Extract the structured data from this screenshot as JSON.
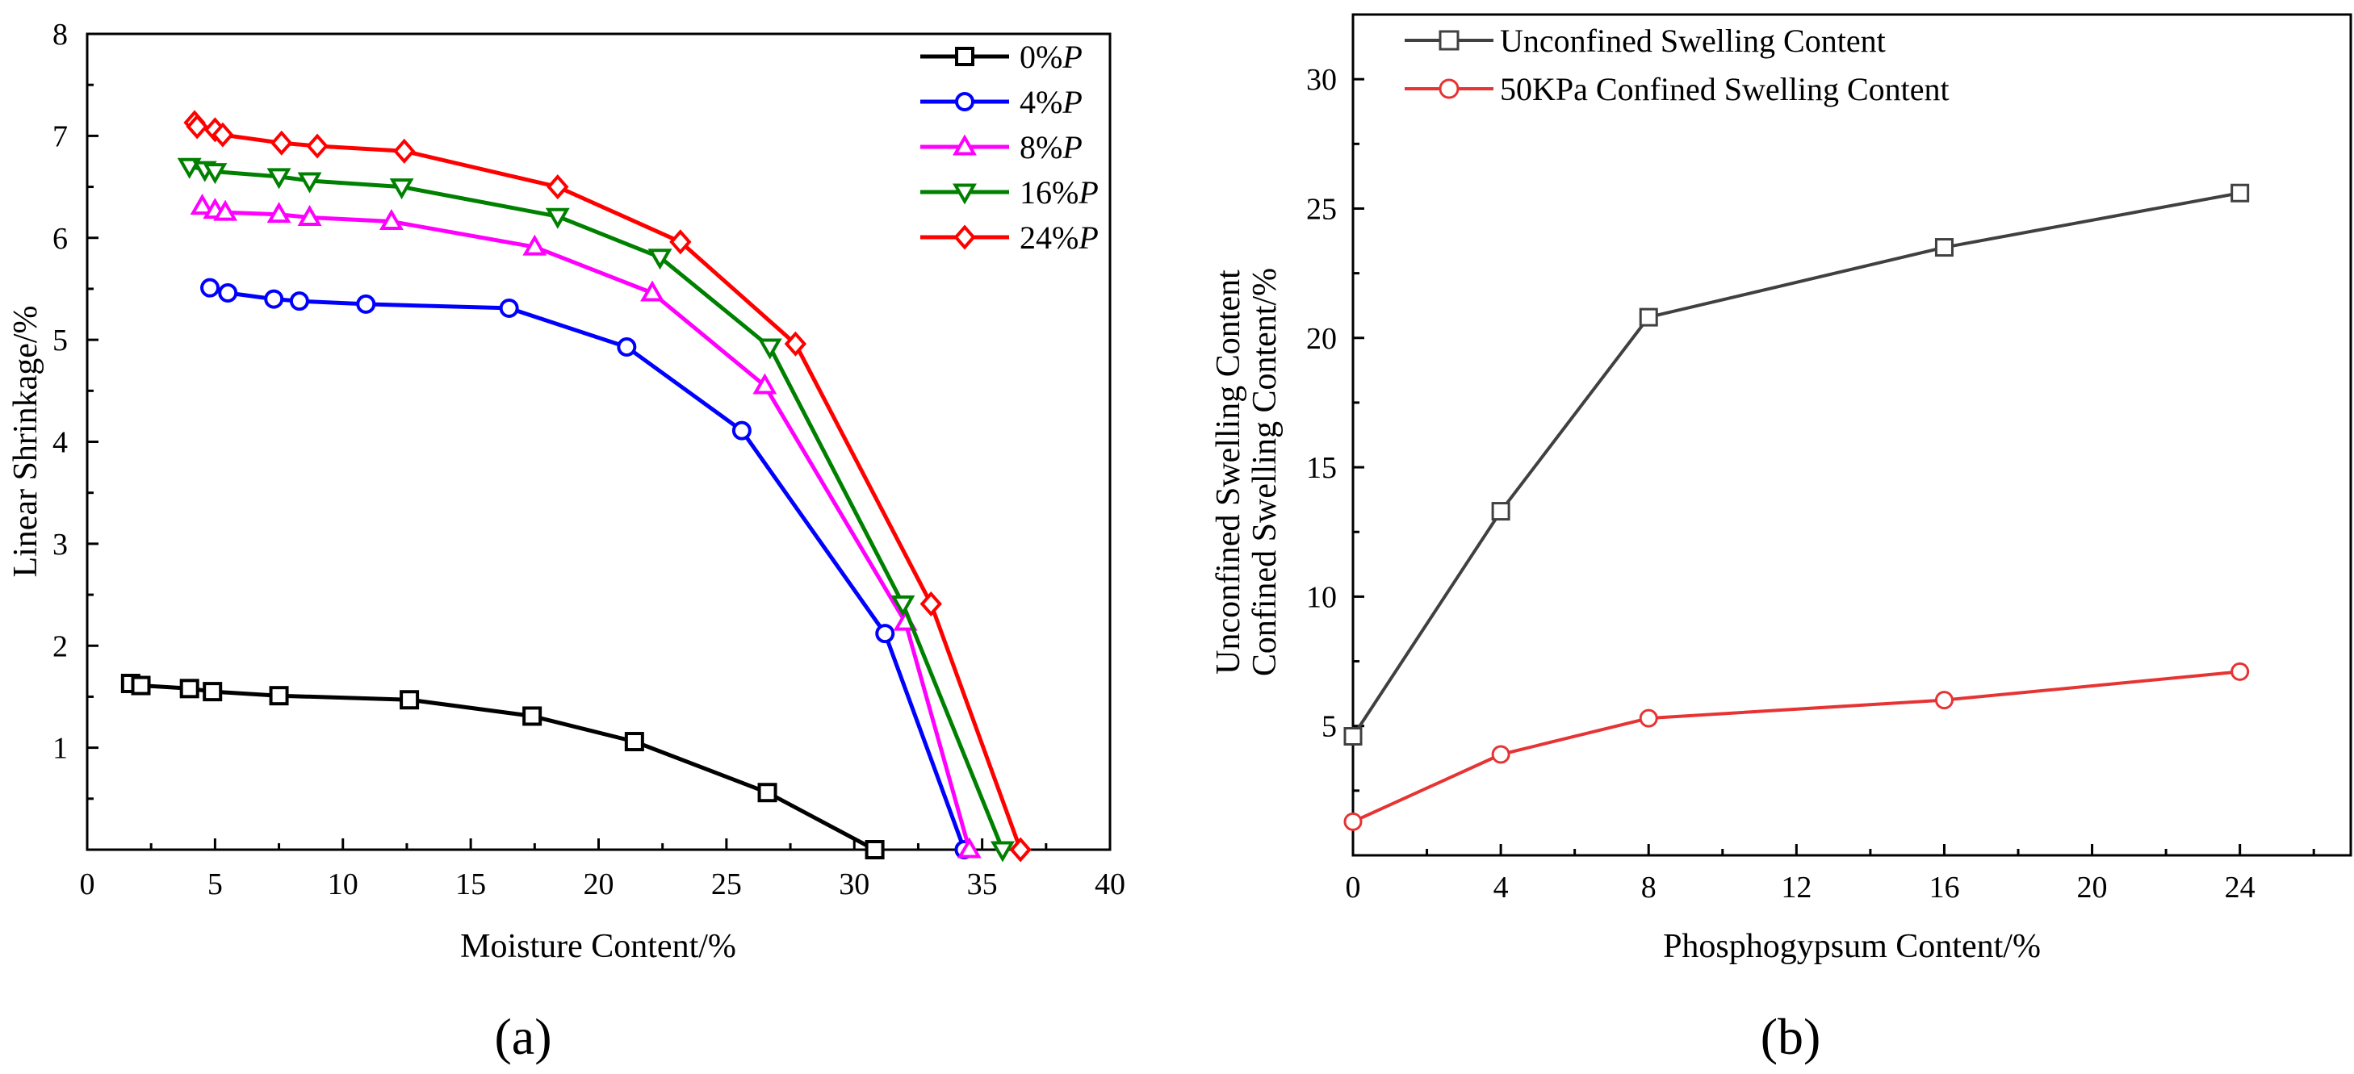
{
  "chart_data": [
    {
      "type": "line",
      "panel_label": "(a)",
      "xlabel": "Moisture Content/%",
      "ylabel": "Linear Shrinkage/%",
      "xlim": [
        0,
        40
      ],
      "ylim": [
        0,
        8
      ],
      "x_ticks": [
        "0",
        "5",
        "10",
        "15",
        "20",
        "25",
        "30",
        "35",
        "40"
      ],
      "y_ticks": [
        "1",
        "2",
        "3",
        "4",
        "5",
        "6",
        "7",
        "8"
      ],
      "legend_position": "top-right",
      "series": [
        {
          "name": "0%P",
          "label_prefix": "0%",
          "label_italic": "P",
          "color": "#000000",
          "marker": "square",
          "x": [
            1.7,
            2.1,
            4.0,
            4.9,
            7.5,
            12.6,
            17.4,
            21.4,
            26.6,
            30.8
          ],
          "y": [
            1.63,
            1.61,
            1.58,
            1.55,
            1.51,
            1.47,
            1.31,
            1.06,
            0.56,
            0.0
          ]
        },
        {
          "name": "4%P",
          "label_prefix": "4%",
          "label_italic": "P",
          "color": "#0000ff",
          "marker": "circle",
          "x": [
            4.8,
            5.5,
            7.3,
            8.3,
            10.9,
            16.5,
            21.1,
            25.6,
            31.2,
            34.3
          ],
          "y": [
            5.51,
            5.46,
            5.4,
            5.38,
            5.35,
            5.31,
            4.93,
            4.11,
            2.12,
            0.0
          ]
        },
        {
          "name": "8%P",
          "label_prefix": "8%",
          "label_italic": "P",
          "color": "#ff00ff",
          "marker": "triangle-up",
          "x": [
            4.5,
            5.0,
            5.4,
            7.5,
            8.7,
            11.9,
            17.5,
            22.1,
            26.5,
            32.0,
            34.5
          ],
          "y": [
            6.31,
            6.27,
            6.25,
            6.23,
            6.2,
            6.16,
            5.91,
            5.46,
            4.55,
            2.23,
            0.0
          ]
        },
        {
          "name": "16%P",
          "label_prefix": "16%",
          "label_italic": "P",
          "color": "#008000",
          "marker": "triangle-down",
          "x": [
            4.0,
            4.6,
            5.0,
            7.5,
            8.7,
            12.3,
            18.4,
            22.4,
            26.7,
            31.9,
            35.8
          ],
          "y": [
            6.7,
            6.67,
            6.65,
            6.6,
            6.56,
            6.5,
            6.21,
            5.81,
            4.93,
            2.41,
            0.0
          ]
        },
        {
          "name": "24%P",
          "label_prefix": "24%",
          "label_italic": "P",
          "color": "#ff0000",
          "marker": "diamond",
          "x": [
            4.2,
            4.3,
            5.0,
            5.3,
            7.6,
            9.0,
            12.4,
            18.4,
            23.2,
            27.7,
            33.0,
            36.5
          ],
          "y": [
            7.13,
            7.09,
            7.06,
            7.01,
            6.93,
            6.9,
            6.85,
            6.5,
            5.96,
            4.96,
            2.41,
            0.0
          ]
        }
      ]
    },
    {
      "type": "line",
      "panel_label": "(b)",
      "xlabel": "Phosphogypsum Content/%",
      "ylabel": [
        "Unconfined Swelling Content",
        "Confined Swelling Content/%"
      ],
      "xlim": [
        0,
        27
      ],
      "ylim": [
        0,
        32.5
      ],
      "x_ticks": [
        "0",
        "4",
        "8",
        "12",
        "16",
        "20",
        "24"
      ],
      "y_ticks": [
        "5",
        "10",
        "15",
        "20",
        "25",
        "30"
      ],
      "legend_position": "top-left",
      "series": [
        {
          "name": "Unconfined Swelling Content",
          "color": "#404040",
          "marker": "square",
          "x": [
            0,
            4,
            8,
            16,
            24
          ],
          "y": [
            4.6,
            13.3,
            20.8,
            23.5,
            25.6
          ]
        },
        {
          "name": "50KPa Confined Swelling Content",
          "color": "#e63333",
          "marker": "circle",
          "x": [
            0,
            4,
            8,
            16,
            24
          ],
          "y": [
            1.3,
            3.9,
            5.3,
            6.0,
            7.1
          ]
        }
      ]
    }
  ]
}
